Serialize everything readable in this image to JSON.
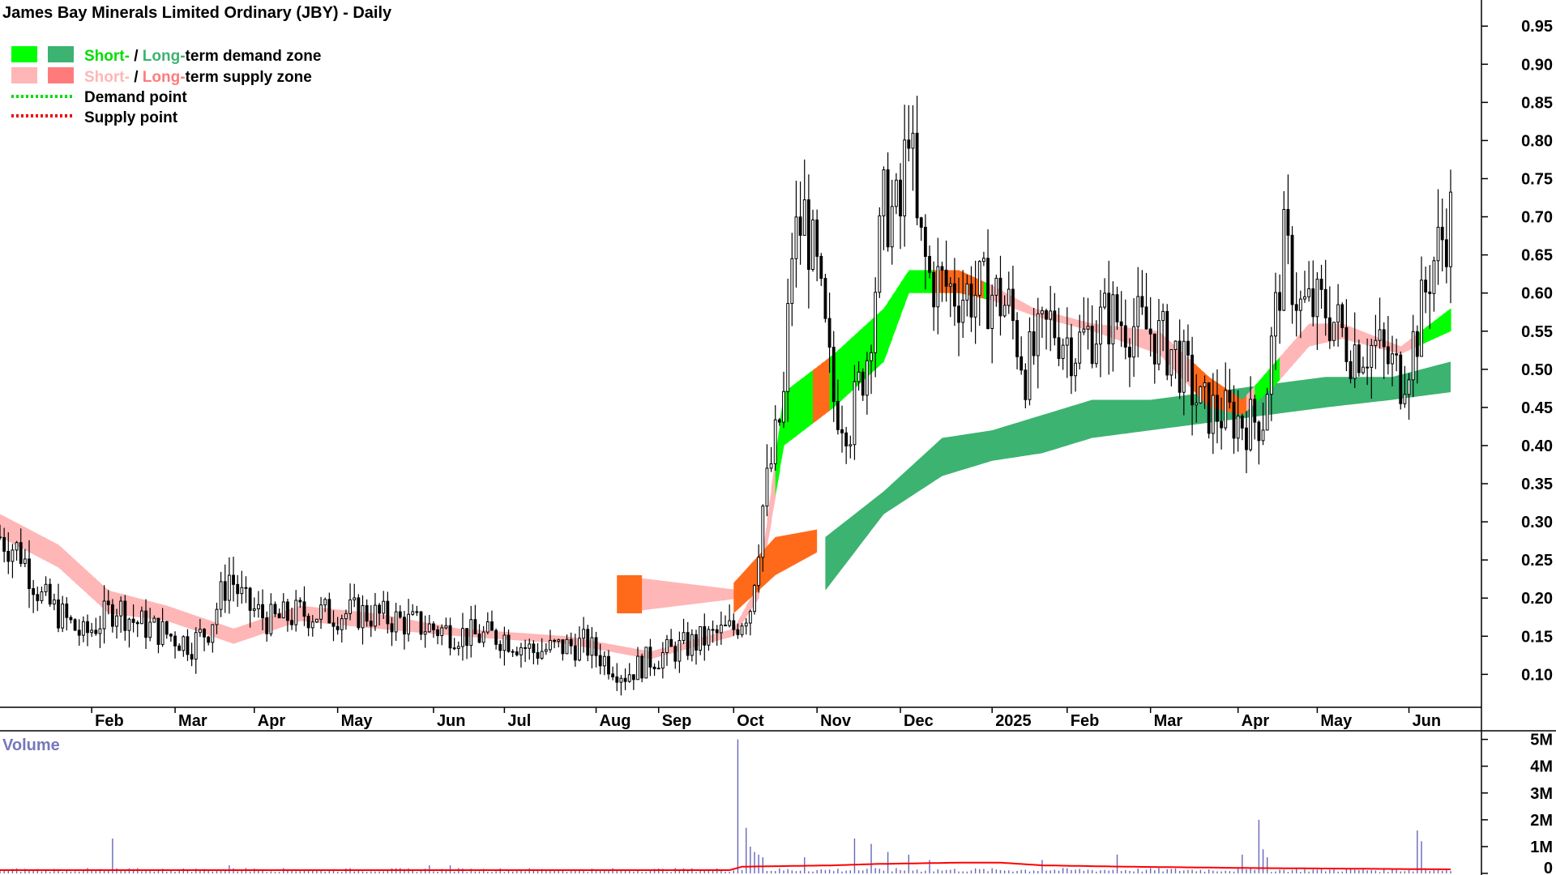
{
  "chart_data": {
    "type": "candlestick",
    "title": "James Bay Minerals Limited Ordinary (JBY) - Daily",
    "legend": {
      "placement": "top-left",
      "demand_zone": {
        "short": "Short-",
        "sep": " / ",
        "long": "Long-",
        "rest": "term demand zone"
      },
      "supply_zone": {
        "short": "Short-",
        "sep": " / ",
        "long": "Long-",
        "rest": "term supply zone"
      },
      "demand_point": "Demand point",
      "supply_point": "Supply point"
    },
    "colors": {
      "short_demand": "#00ff00",
      "long_demand": "#3cb371",
      "short_supply": "#ffb6b6",
      "long_supply": "#ff7b7b",
      "supply_active": "#ff6a1a",
      "demand_point": "#00dd00",
      "supply_point": "#ee0000",
      "volume_bar": "#6666bb",
      "volume_avg": "#ff0000"
    },
    "x_axis": {
      "labels": [
        "Feb",
        "Mar",
        "Apr",
        "May",
        "Jun",
        "Jul",
        "Aug",
        "Sep",
        "Oct",
        "Nov",
        "Dec",
        "2025",
        "Feb",
        "Mar",
        "Apr",
        "May",
        "Jun"
      ],
      "label_positions": [
        22,
        42,
        61,
        81,
        104,
        121,
        143,
        158,
        176,
        196,
        216,
        238,
        256,
        276,
        297,
        316,
        338
      ]
    },
    "y_axis": {
      "ylim": [
        0.06,
        0.98
      ],
      "ticks": [
        "0.10",
        "0.15",
        "0.20",
        "0.25",
        "0.30",
        "0.35",
        "0.40",
        "0.45",
        "0.50",
        "0.55",
        "0.60",
        "0.65",
        "0.70",
        "0.75",
        "0.80",
        "0.85",
        "0.90",
        "0.95"
      ]
    },
    "price_waypoints": [
      [
        0,
        0.28
      ],
      [
        5,
        0.26
      ],
      [
        10,
        0.2
      ],
      [
        20,
        0.15
      ],
      [
        24,
        0.17
      ],
      [
        28,
        0.19
      ],
      [
        32,
        0.17
      ],
      [
        46,
        0.14
      ],
      [
        50,
        0.16
      ],
      [
        55,
        0.23
      ],
      [
        59,
        0.19
      ],
      [
        65,
        0.17
      ],
      [
        72,
        0.18
      ],
      [
        88,
        0.18
      ],
      [
        96,
        0.17
      ],
      [
        104,
        0.16
      ],
      [
        114,
        0.15
      ],
      [
        121,
        0.15
      ],
      [
        128,
        0.13
      ],
      [
        140,
        0.14
      ],
      [
        150,
        0.1
      ],
      [
        156,
        0.12
      ],
      [
        166,
        0.14
      ],
      [
        176,
        0.16
      ],
      [
        180,
        0.19
      ],
      [
        183,
        0.32
      ],
      [
        188,
        0.46
      ],
      [
        190,
        0.66
      ],
      [
        193,
        0.7
      ],
      [
        196,
        0.62
      ],
      [
        200,
        0.46
      ],
      [
        204,
        0.43
      ],
      [
        208,
        0.52
      ],
      [
        212,
        0.71
      ],
      [
        216,
        0.7
      ],
      [
        218,
        0.84
      ],
      [
        220,
        0.68
      ],
      [
        223,
        0.62
      ],
      [
        230,
        0.6
      ],
      [
        238,
        0.6
      ],
      [
        242,
        0.58
      ],
      [
        246,
        0.5
      ],
      [
        252,
        0.56
      ],
      [
        258,
        0.53
      ],
      [
        266,
        0.57
      ],
      [
        276,
        0.55
      ],
      [
        282,
        0.52
      ],
      [
        288,
        0.45
      ],
      [
        294,
        0.44
      ],
      [
        300,
        0.43
      ],
      [
        303,
        0.44
      ],
      [
        308,
        0.66
      ],
      [
        312,
        0.58
      ],
      [
        318,
        0.58
      ],
      [
        324,
        0.53
      ],
      [
        330,
        0.53
      ],
      [
        336,
        0.49
      ],
      [
        340,
        0.55
      ],
      [
        343,
        0.63
      ],
      [
        348,
        0.7
      ]
    ],
    "long_demand_band": [
      [
        198,
        0.21,
        0.28
      ],
      [
        212,
        0.31,
        0.34
      ],
      [
        226,
        0.36,
        0.41
      ],
      [
        238,
        0.38,
        0.42
      ],
      [
        250,
        0.39,
        0.44
      ],
      [
        262,
        0.41,
        0.46
      ],
      [
        276,
        0.42,
        0.46
      ],
      [
        290,
        0.43,
        0.47
      ],
      [
        304,
        0.44,
        0.48
      ],
      [
        318,
        0.45,
        0.49
      ],
      [
        334,
        0.46,
        0.49
      ],
      [
        348,
        0.47,
        0.51
      ]
    ],
    "short_band": [
      [
        0,
        0.28,
        0.31
      ],
      [
        14,
        0.24,
        0.27
      ],
      [
        26,
        0.18,
        0.21
      ],
      [
        40,
        0.17,
        0.19
      ],
      [
        56,
        0.14,
        0.16
      ],
      [
        72,
        0.17,
        0.19
      ],
      [
        90,
        0.16,
        0.18
      ],
      [
        110,
        0.15,
        0.16
      ],
      [
        136,
        0.14,
        0.15
      ],
      [
        156,
        0.12,
        0.13
      ],
      [
        176,
        0.15,
        0.16
      ],
      [
        182,
        0.2,
        0.22
      ],
      [
        188,
        0.4,
        0.47
      ],
      [
        200,
        0.45,
        0.52
      ],
      [
        212,
        0.51,
        0.58
      ],
      [
        218,
        0.6,
        0.63
      ],
      [
        230,
        0.6,
        0.63
      ],
      [
        238,
        0.59,
        0.61
      ],
      [
        248,
        0.57,
        0.58
      ],
      [
        262,
        0.55,
        0.56
      ],
      [
        278,
        0.52,
        0.55
      ],
      [
        290,
        0.45,
        0.49
      ],
      [
        298,
        0.44,
        0.46
      ],
      [
        306,
        0.48,
        0.51
      ],
      [
        314,
        0.53,
        0.56
      ],
      [
        322,
        0.54,
        0.56
      ],
      [
        336,
        0.52,
        0.53
      ],
      [
        348,
        0.55,
        0.58
      ]
    ],
    "demand_zone_ranges": [
      [
        186,
        195
      ],
      [
        198,
        236
      ],
      [
        301,
        306
      ],
      [
        340,
        348
      ]
    ],
    "supply_active_ranges": [
      [
        195,
        198
      ],
      [
        224,
        235
      ],
      [
        286,
        298
      ]
    ],
    "long_supply_box": [
      [
        148,
        0.18,
        0.23
      ],
      [
        178,
        0.2,
        0.21
      ]
    ],
    "volume": {
      "label": "Volume",
      "ylim": [
        0,
        5.2
      ],
      "ticks": [
        "0",
        "1M",
        "2M",
        "3M",
        "4M",
        "5M"
      ],
      "spikes": [
        [
          27,
          1.3
        ],
        [
          55,
          0.3
        ],
        [
          59,
          0.2
        ],
        [
          103,
          0.3
        ],
        [
          108,
          0.3
        ],
        [
          177,
          5.0
        ],
        [
          179,
          1.7
        ],
        [
          180,
          1.0
        ],
        [
          181,
          0.8
        ],
        [
          182,
          0.7
        ],
        [
          183,
          0.6
        ],
        [
          193,
          0.6
        ],
        [
          205,
          1.3
        ],
        [
          209,
          1.1
        ],
        [
          213,
          0.8
        ],
        [
          218,
          0.7
        ],
        [
          223,
          0.5
        ],
        [
          250,
          0.5
        ],
        [
          268,
          0.7
        ],
        [
          298,
          0.7
        ],
        [
          302,
          2.0
        ],
        [
          303,
          0.9
        ],
        [
          304,
          0.6
        ],
        [
          340,
          1.6
        ],
        [
          341,
          1.2
        ]
      ],
      "avg_waypoints": [
        [
          0,
          0.12
        ],
        [
          100,
          0.12
        ],
        [
          175,
          0.12
        ],
        [
          178,
          0.25
        ],
        [
          200,
          0.3
        ],
        [
          210,
          0.35
        ],
        [
          230,
          0.4
        ],
        [
          240,
          0.4
        ],
        [
          250,
          0.3
        ],
        [
          270,
          0.25
        ],
        [
          300,
          0.2
        ],
        [
          348,
          0.15
        ]
      ]
    }
  }
}
